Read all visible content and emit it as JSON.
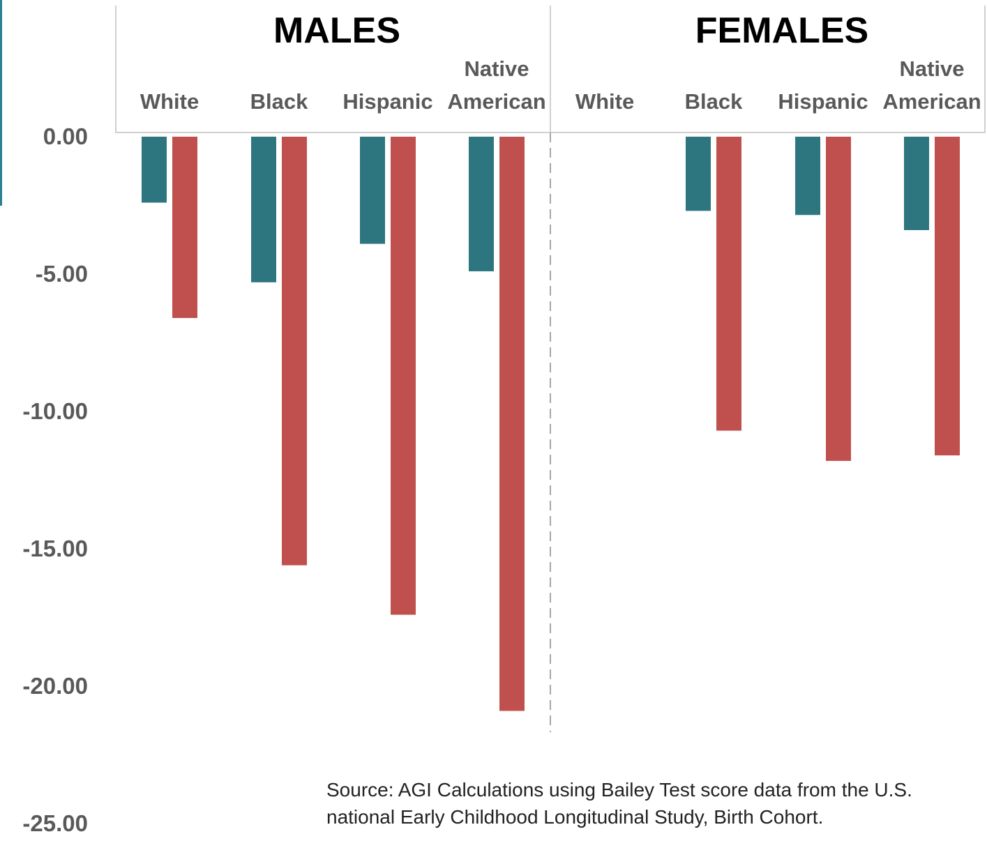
{
  "chart_data": {
    "type": "bar",
    "panels": [
      {
        "title": "MALES",
        "categories": [
          {
            "lines": [
              "",
              "White"
            ]
          },
          {
            "lines": [
              "",
              "Black"
            ]
          },
          {
            "lines": [
              "",
              "Hispanic"
            ]
          },
          {
            "lines": [
              "Native",
              "American"
            ]
          }
        ]
      },
      {
        "title": "FEMALES",
        "categories": [
          {
            "lines": [
              "",
              "White"
            ]
          },
          {
            "lines": [
              "",
              "Black"
            ]
          },
          {
            "lines": [
              "",
              "Hispanic"
            ]
          },
          {
            "lines": [
              "Native",
              "American"
            ]
          }
        ]
      }
    ],
    "series": [
      {
        "color": "#2d7680",
        "values": [
          -2.4,
          -5.3,
          -3.9,
          -4.9,
          null,
          -2.7,
          -2.85,
          -3.4
        ]
      },
      {
        "color": "#c0504d",
        "values": [
          -6.6,
          -15.6,
          -17.4,
          -20.9,
          null,
          -10.7,
          -11.8,
          -11.6
        ]
      }
    ],
    "yticks": [
      "0.00",
      "-5.00",
      "-10.00",
      "-15.00",
      "-20.00",
      "-25.00"
    ],
    "ytick_values": [
      0,
      -5,
      -10,
      -15,
      -20,
      -25
    ],
    "ylim": [
      -25,
      0
    ],
    "legend": null,
    "grid": false
  },
  "source_lines": [
    "Source: AGI Calculations using Bailey Test score data from the U.S.",
    "national Early Childhood Longitudinal Study, Birth Cohort."
  ]
}
